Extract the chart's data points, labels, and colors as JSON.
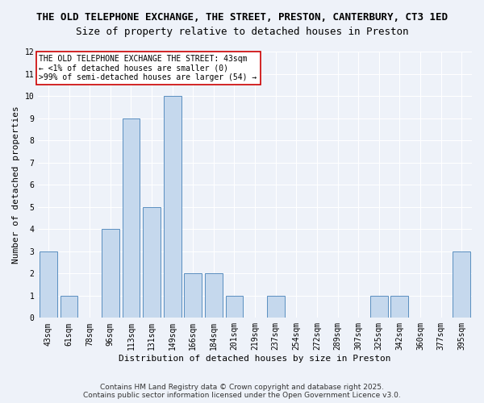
{
  "title_line1": "THE OLD TELEPHONE EXCHANGE, THE STREET, PRESTON, CANTERBURY, CT3 1ED",
  "title_line2": "Size of property relative to detached houses in Preston",
  "xlabel": "Distribution of detached houses by size in Preston",
  "ylabel": "Number of detached properties",
  "categories": [
    "43sqm",
    "61sqm",
    "78sqm",
    "96sqm",
    "113sqm",
    "131sqm",
    "149sqm",
    "166sqm",
    "184sqm",
    "201sqm",
    "219sqm",
    "237sqm",
    "254sqm",
    "272sqm",
    "289sqm",
    "307sqm",
    "325sqm",
    "342sqm",
    "360sqm",
    "377sqm",
    "395sqm"
  ],
  "values": [
    3,
    1,
    0,
    4,
    9,
    5,
    10,
    2,
    2,
    1,
    0,
    1,
    0,
    0,
    0,
    0,
    1,
    1,
    0,
    0,
    3
  ],
  "bar_color": "#c5d8ed",
  "bar_edge_color": "#5a8fc0",
  "ylim": [
    0,
    12
  ],
  "yticks": [
    0,
    1,
    2,
    3,
    4,
    5,
    6,
    7,
    8,
    9,
    10,
    11,
    12
  ],
  "annotation_box_text": "THE OLD TELEPHONE EXCHANGE THE STREET: 43sqm\n← <1% of detached houses are smaller (0)\n>99% of semi-detached houses are larger (54) →",
  "annotation_box_color": "#ffffff",
  "annotation_box_edge_color": "#cc0000",
  "footer_line1": "Contains HM Land Registry data © Crown copyright and database right 2025.",
  "footer_line2": "Contains public sector information licensed under the Open Government Licence v3.0.",
  "bg_color": "#eef2f9",
  "grid_color": "#ffffff",
  "title_fontsize": 9,
  "axis_label_fontsize": 8,
  "tick_fontsize": 7,
  "annotation_fontsize": 7,
  "footer_fontsize": 6.5
}
